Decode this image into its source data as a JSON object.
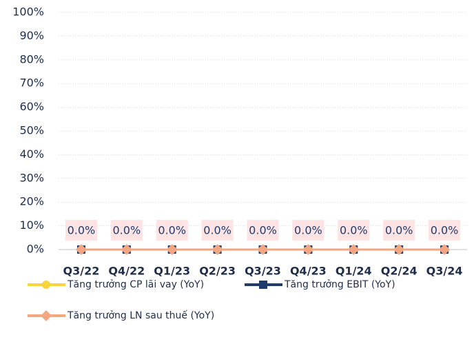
{
  "chart_data": {
    "type": "line",
    "categories": [
      "Q3/22",
      "Q4/22",
      "Q1/23",
      "Q2/23",
      "Q3/23",
      "Q4/23",
      "Q1/24",
      "Q2/24",
      "Q3/24"
    ],
    "ylim": [
      0,
      100
    ],
    "yticks": [
      {
        "value": 0,
        "label": "0%"
      },
      {
        "value": 10,
        "label": "10%"
      },
      {
        "value": 20,
        "label": "20%"
      },
      {
        "value": 30,
        "label": "30%"
      },
      {
        "value": 40,
        "label": "40%"
      },
      {
        "value": 50,
        "label": "50%"
      },
      {
        "value": 60,
        "label": "60%"
      },
      {
        "value": 70,
        "label": "70%"
      },
      {
        "value": 80,
        "label": "80%"
      },
      {
        "value": 90,
        "label": "90%"
      },
      {
        "value": 100,
        "label": "100%"
      }
    ],
    "grid": true,
    "series": [
      {
        "name": "Tăng trưởng CP lãi vay (YoY)",
        "color": "#f7d53c",
        "marker": "circle",
        "values": [
          0,
          0,
          0,
          0,
          0,
          0,
          0,
          0,
          0
        ]
      },
      {
        "name": "Tăng trưởng EBIT (YoY)",
        "color": "#1f3d6b",
        "marker": "square",
        "values": [
          0,
          0,
          0,
          0,
          0,
          0,
          0,
          0,
          0
        ]
      },
      {
        "name": "Tăng trưởng LN sau thuế (YoY)",
        "color": "#f4a582",
        "marker": "diamond",
        "values": [
          0,
          0,
          0,
          0,
          0,
          0,
          0,
          0,
          0
        ],
        "value_labels": [
          "0.0%",
          "0.0%",
          "0.0%",
          "0.0%",
          "0.0%",
          "0.0%",
          "0.0%",
          "0.0%",
          "0.0%"
        ]
      }
    ]
  }
}
